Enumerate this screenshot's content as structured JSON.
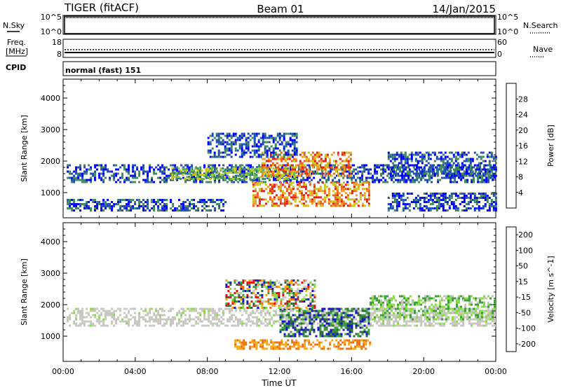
{
  "header": {
    "radar": "TIGER (fitACF)",
    "beam": "Beam 01",
    "date": "14/Jan/2015"
  },
  "strip_sky": {
    "left_label": "N.Sky",
    "right_label": "N.Search",
    "left_ticks": [
      "10^5",
      "10^0"
    ],
    "right_ticks": [
      "10^5",
      "10^0"
    ]
  },
  "strip_freq": {
    "left_label_line1": "Freq.",
    "left_label_line2": "[MHz]",
    "right_label": "Nave",
    "left_ticks": [
      "18",
      "8"
    ],
    "right_ticks": [
      "60",
      "0"
    ]
  },
  "strip_cpid": {
    "label": "CPID",
    "value": "normal (fast) 151"
  },
  "chart_data": [
    {
      "type": "heatmap",
      "ylabel": "Slant Range [km]",
      "xlabel": "Time UT",
      "x_ticks": [
        "00:00",
        "04:00",
        "08:00",
        "12:00",
        "16:00",
        "20:00",
        "00:00"
      ],
      "y_ticks": [
        "1000",
        "2000",
        "3000",
        "4000"
      ],
      "ylim": [
        200,
        4600
      ],
      "colorbar": {
        "label": "Power [dB]",
        "ticks": [
          "4",
          "8",
          "12",
          "16",
          "20",
          "24",
          "28"
        ],
        "colors": [
          "#0000ff",
          "#1f4fb0",
          "#3d8a5a",
          "#6cc04a",
          "#c8c820",
          "#f0a020",
          "#f06018",
          "#e81e10"
        ]
      },
      "regions": [
        {
          "x": [
            0.2,
            24
          ],
          "y": [
            1350,
            1900
          ],
          "level": "low"
        },
        {
          "x": [
            0.2,
            9
          ],
          "y": [
            400,
            800
          ],
          "level": "low"
        },
        {
          "x": [
            6,
            13
          ],
          "y": [
            1400,
            1800
          ],
          "level": "mid"
        },
        {
          "x": [
            10.5,
            17
          ],
          "y": [
            600,
            1350
          ],
          "level": "high"
        },
        {
          "x": [
            11,
            16
          ],
          "y": [
            1500,
            2300
          ],
          "level": "high"
        },
        {
          "x": [
            8,
            13
          ],
          "y": [
            2100,
            2900
          ],
          "level": "low"
        },
        {
          "x": [
            18,
            24
          ],
          "y": [
            1500,
            2300
          ],
          "level": "low"
        },
        {
          "x": [
            18,
            24
          ],
          "y": [
            400,
            1000
          ],
          "level": "low"
        }
      ]
    },
    {
      "type": "heatmap",
      "ylabel": "Slant Range [km]",
      "xlabel": "Time UT",
      "x_ticks": [
        "00:00",
        "04:00",
        "08:00",
        "12:00",
        "16:00",
        "20:00",
        "00:00"
      ],
      "y_ticks": [
        "1000",
        "2000",
        "3000",
        "4000"
      ],
      "ylim": [
        200,
        4600
      ],
      "colorbar": {
        "label": "Velocity [m s^-1]",
        "ticks": [
          "200",
          "100",
          "50",
          "15",
          "-15",
          "-50",
          "-100",
          "-200"
        ],
        "colors": [
          "#1818c8",
          "#2f6a40",
          "#3fa040",
          "#88dd44",
          "#c8c8c0",
          "#f8a818",
          "#f07010",
          "#e81010"
        ]
      },
      "regions": [
        {
          "x": [
            0.2,
            24
          ],
          "y": [
            1300,
            1900
          ],
          "level": "ground"
        },
        {
          "x": [
            9.5,
            17
          ],
          "y": [
            600,
            900
          ],
          "level": "negative"
        },
        {
          "x": [
            12,
            17
          ],
          "y": [
            1000,
            1900
          ],
          "level": "positive"
        },
        {
          "x": [
            9,
            14
          ],
          "y": [
            1900,
            2800
          ],
          "level": "mixed"
        },
        {
          "x": [
            17,
            24
          ],
          "y": [
            1500,
            2300
          ],
          "level": "small-positive"
        }
      ]
    }
  ],
  "xlabel": "Time UT"
}
